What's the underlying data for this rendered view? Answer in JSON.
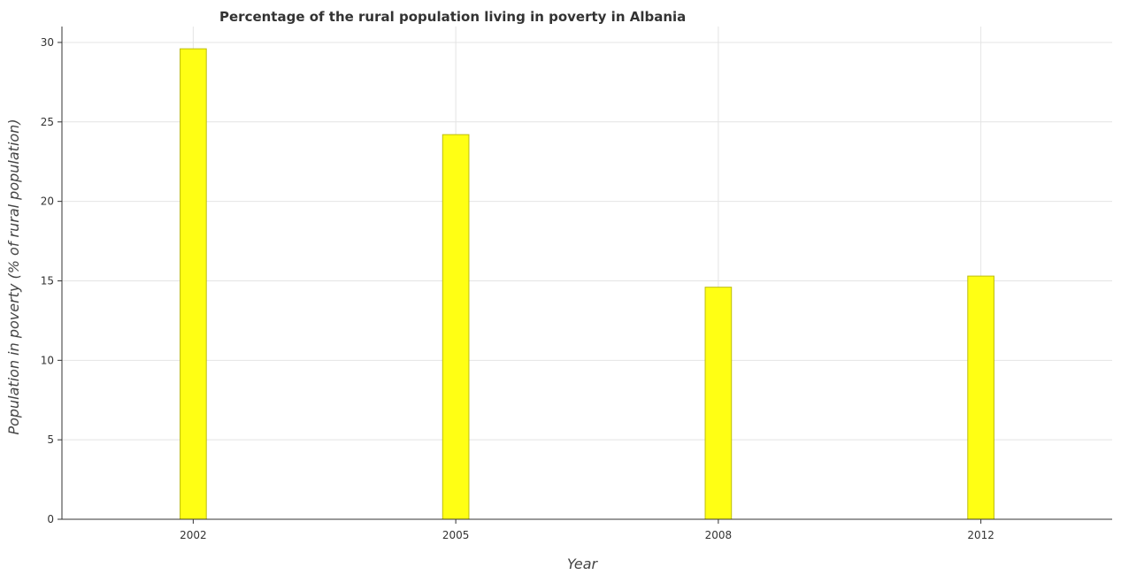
{
  "chart_data": {
    "type": "bar",
    "title": "Percentage of the rural population living in poverty in Albania",
    "xlabel": "Year",
    "ylabel": "Population in poverty (% of rural population)",
    "categories": [
      "2002",
      "2005",
      "2008",
      "2012"
    ],
    "values": [
      29.6,
      24.2,
      14.6,
      15.3
    ],
    "ylim": [
      0,
      31
    ],
    "yticks": [
      0,
      5,
      10,
      15,
      20,
      25,
      30
    ],
    "ytick_labels": [
      "0",
      "5",
      "10",
      "15",
      "20",
      "25",
      "30"
    ],
    "grid": true,
    "legend": "none",
    "colors": {
      "bar_fill": "#ffff14",
      "bar_edge": "#bdbd0f",
      "grid": "#e4e4e4"
    }
  }
}
